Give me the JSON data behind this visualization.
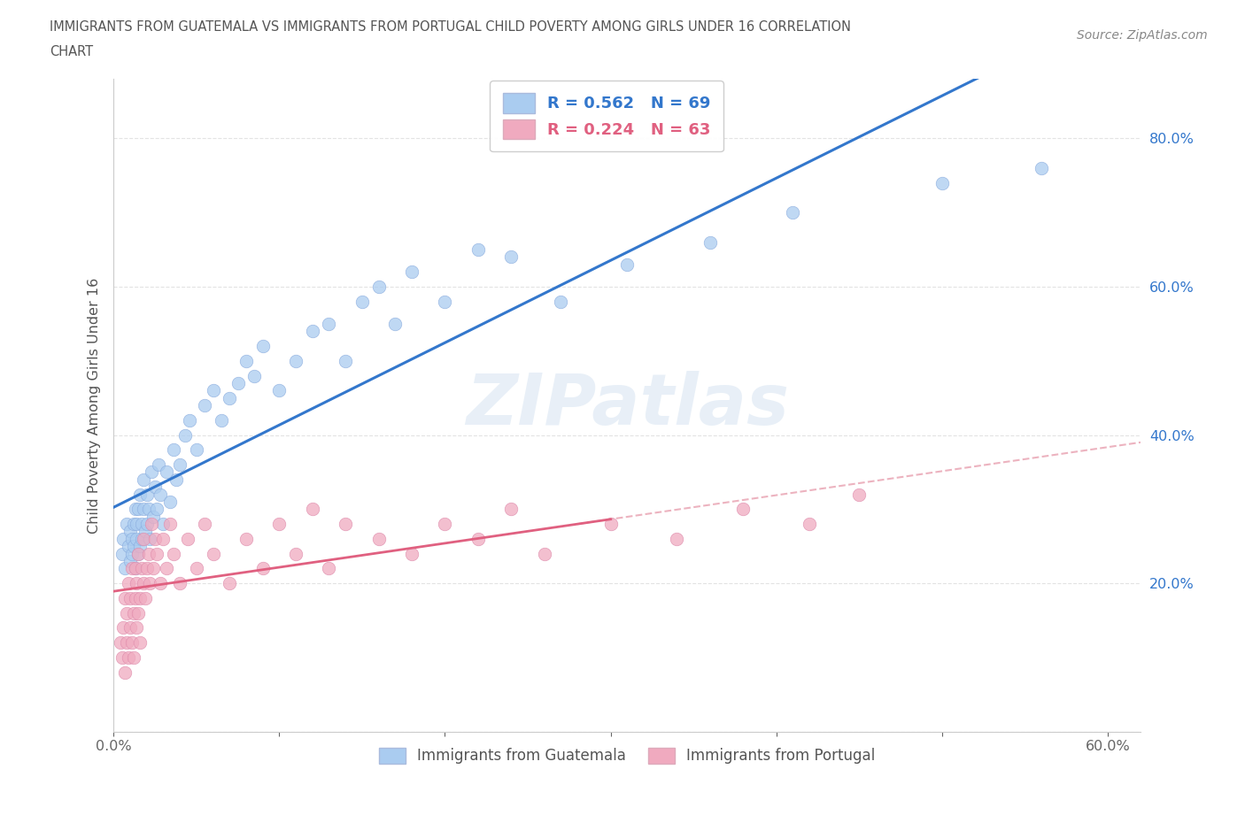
{
  "title_line1": "IMMIGRANTS FROM GUATEMALA VS IMMIGRANTS FROM PORTUGAL CHILD POVERTY AMONG GIRLS UNDER 16 CORRELATION",
  "title_line2": "CHART",
  "source": "Source: ZipAtlas.com",
  "ylabel": "Child Poverty Among Girls Under 16",
  "xlim": [
    0.0,
    0.62
  ],
  "ylim": [
    0.0,
    0.88
  ],
  "xtick_positions": [
    0.0,
    0.1,
    0.2,
    0.3,
    0.4,
    0.5,
    0.6
  ],
  "xticklabels": [
    "0.0%",
    "",
    "",
    "",
    "",
    "",
    "60.0%"
  ],
  "ytick_positions": [
    0.0,
    0.2,
    0.4,
    0.6,
    0.8
  ],
  "yticklabels": [
    "",
    "20.0%",
    "40.0%",
    "60.0%",
    "80.0%"
  ],
  "guatemala_color": "#aaccf0",
  "portugal_color": "#f0aabf",
  "guatemala_line_color": "#3377cc",
  "portugal_line_solid_color": "#e06080",
  "portugal_line_dashed_color": "#e8a0b0",
  "R_guatemala": 0.562,
  "N_guatemala": 69,
  "R_portugal": 0.224,
  "N_portugal": 63,
  "legend_label_guatemala": "Immigrants from Guatemala",
  "legend_label_portugal": "Immigrants from Portugal",
  "watermark": "ZIPatlas",
  "guatemala_x": [
    0.005,
    0.006,
    0.007,
    0.008,
    0.009,
    0.01,
    0.01,
    0.011,
    0.011,
    0.012,
    0.012,
    0.013,
    0.013,
    0.014,
    0.014,
    0.015,
    0.015,
    0.016,
    0.016,
    0.017,
    0.017,
    0.018,
    0.018,
    0.019,
    0.02,
    0.02,
    0.021,
    0.022,
    0.023,
    0.024,
    0.025,
    0.026,
    0.027,
    0.028,
    0.03,
    0.032,
    0.034,
    0.036,
    0.038,
    0.04,
    0.043,
    0.046,
    0.05,
    0.055,
    0.06,
    0.065,
    0.07,
    0.075,
    0.08,
    0.085,
    0.09,
    0.1,
    0.11,
    0.12,
    0.13,
    0.14,
    0.15,
    0.16,
    0.17,
    0.18,
    0.2,
    0.22,
    0.24,
    0.27,
    0.31,
    0.36,
    0.41,
    0.5,
    0.56
  ],
  "guatemala_y": [
    0.24,
    0.26,
    0.22,
    0.28,
    0.25,
    0.23,
    0.27,
    0.24,
    0.26,
    0.25,
    0.28,
    0.22,
    0.3,
    0.26,
    0.28,
    0.24,
    0.3,
    0.25,
    0.32,
    0.26,
    0.28,
    0.3,
    0.34,
    0.27,
    0.28,
    0.32,
    0.3,
    0.26,
    0.35,
    0.29,
    0.33,
    0.3,
    0.36,
    0.32,
    0.28,
    0.35,
    0.31,
    0.38,
    0.34,
    0.36,
    0.4,
    0.42,
    0.38,
    0.44,
    0.46,
    0.42,
    0.45,
    0.47,
    0.5,
    0.48,
    0.52,
    0.46,
    0.5,
    0.54,
    0.55,
    0.5,
    0.58,
    0.6,
    0.55,
    0.62,
    0.58,
    0.65,
    0.64,
    0.58,
    0.63,
    0.66,
    0.7,
    0.74,
    0.76
  ],
  "portugal_x": [
    0.004,
    0.005,
    0.006,
    0.007,
    0.007,
    0.008,
    0.008,
    0.009,
    0.009,
    0.01,
    0.01,
    0.011,
    0.011,
    0.012,
    0.012,
    0.013,
    0.013,
    0.014,
    0.014,
    0.015,
    0.015,
    0.016,
    0.016,
    0.017,
    0.018,
    0.018,
    0.019,
    0.02,
    0.021,
    0.022,
    0.023,
    0.024,
    0.025,
    0.026,
    0.028,
    0.03,
    0.032,
    0.034,
    0.036,
    0.04,
    0.045,
    0.05,
    0.055,
    0.06,
    0.07,
    0.08,
    0.09,
    0.1,
    0.11,
    0.12,
    0.13,
    0.14,
    0.16,
    0.18,
    0.2,
    0.22,
    0.24,
    0.26,
    0.3,
    0.34,
    0.38,
    0.42,
    0.45
  ],
  "portugal_y": [
    0.12,
    0.1,
    0.14,
    0.08,
    0.18,
    0.12,
    0.16,
    0.1,
    0.2,
    0.14,
    0.18,
    0.12,
    0.22,
    0.16,
    0.1,
    0.18,
    0.22,
    0.14,
    0.2,
    0.16,
    0.24,
    0.18,
    0.12,
    0.22,
    0.2,
    0.26,
    0.18,
    0.22,
    0.24,
    0.2,
    0.28,
    0.22,
    0.26,
    0.24,
    0.2,
    0.26,
    0.22,
    0.28,
    0.24,
    0.2,
    0.26,
    0.22,
    0.28,
    0.24,
    0.2,
    0.26,
    0.22,
    0.28,
    0.24,
    0.3,
    0.22,
    0.28,
    0.26,
    0.24,
    0.28,
    0.26,
    0.3,
    0.24,
    0.28,
    0.26,
    0.3,
    0.28,
    0.32
  ]
}
